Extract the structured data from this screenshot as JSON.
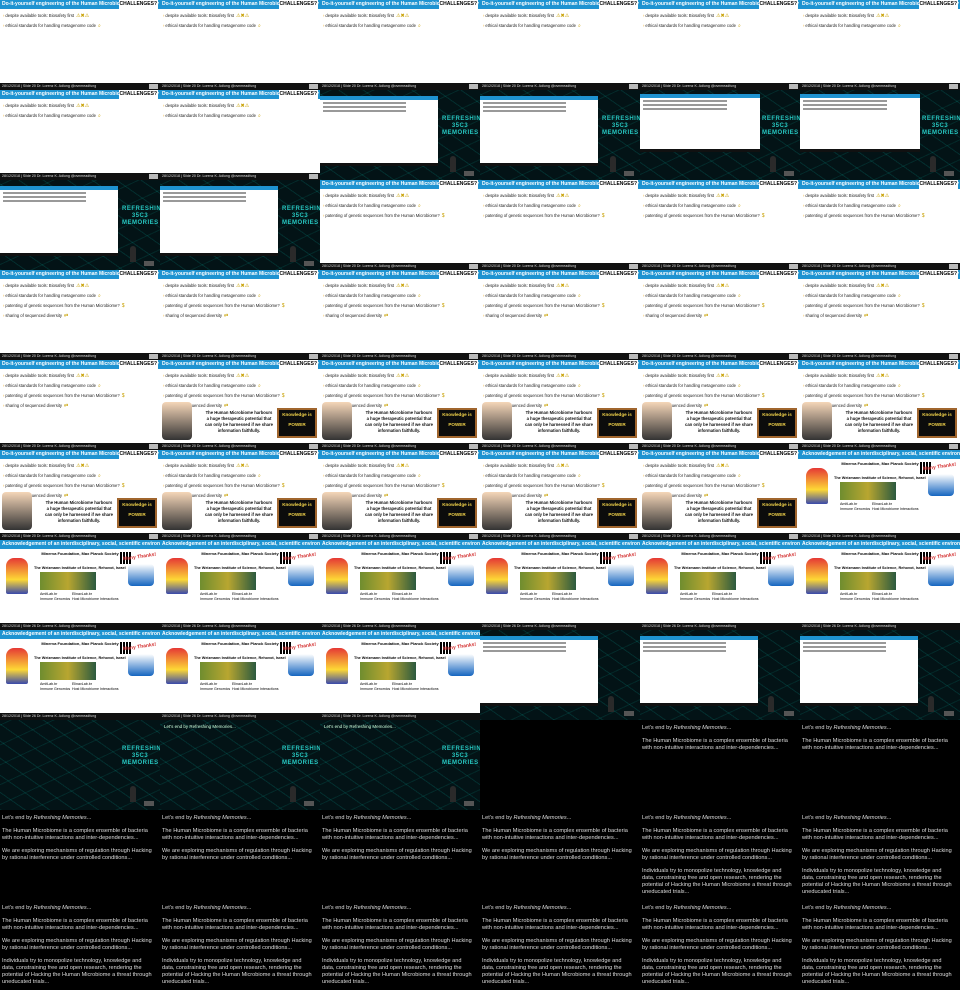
{
  "slide": {
    "title": "Do-it-yourself engineering of the Human Microbiome in its infancy",
    "challenge_label": "CHALLENGES?",
    "bullets": [
      "despite available tools: Biosafety first",
      "ethical standards for handling metagenome code",
      "patenting of genetic sequences from the Human Microbiome?",
      "sharing of sequenced diversity"
    ],
    "footer": "28/12/2018 | Slide 20    Dr. Lorenz K. Adlung    @ovnmeadfung",
    "comic_text": "The Human Microbiome harbours a huge therapeutic potential that can only be harnessed if we share information faithfully.",
    "board_text": "Knowledge is POWER"
  },
  "ack": {
    "title": "Acknowledgement of an interdisciplinary, social, scientific environment",
    "org": "Minerva Foundation, Max Planck Society",
    "institute": "The Weizmann Institute of Science, Rehovot, Israel",
    "lab_a": [
      "AmitLab.br",
      "Immune Genomics"
    ],
    "lab_b": [
      "ElinavLab.br",
      "Host Microbiome Interactions"
    ],
    "thanks": "Many Thanks!",
    "footer": "28/12/2018 | Slide 26    Dr. Lorenz K. Adlung    @ovnmeadfung"
  },
  "brand": {
    "line1": "REFRESHING",
    "line2": "35C3",
    "line3": "MEMORIES"
  },
  "video_caption": "Let's end by Refreshing Memories...",
  "ending": {
    "p1_prefix": "Let's end by ",
    "p1_em": "Refreshing Memories",
    "p1_suffix": "...",
    "p2": "The Human Microbiome is a complex ensemble of bacteria with non-intuitive interactions and inter-dependencies...",
    "p3": "We are exploring mechanisms of regulation through Hacking by rational interference under controlled conditions...",
    "p4": "Individuals try to monopolize technology, knowledge and data, constraining free and open research, rendering the potential of Hacking the Human Microbiome a threat through uneducated trials..."
  },
  "colors": {
    "title_bar": "#1e93d1",
    "brand": "#27c6c0",
    "bullet": "#e69a00"
  }
}
